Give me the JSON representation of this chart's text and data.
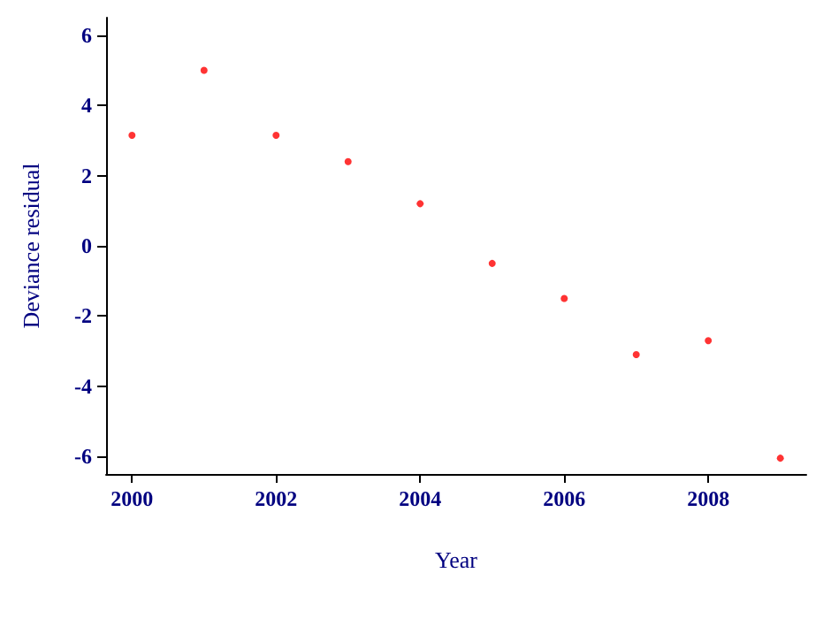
{
  "chart_data": {
    "type": "scatter",
    "xlabel": "Year",
    "ylabel": "Deviance residual",
    "x": [
      2000,
      2001,
      2002,
      2003,
      2004,
      2005,
      2006,
      2007,
      2008,
      2009
    ],
    "series": [
      {
        "color": "#ff0000",
        "values": [
          3.15,
          5.0,
          3.15,
          2.4,
          1.2,
          -0.5,
          -1.5,
          -3.1,
          -2.7,
          -6.05
        ]
      }
    ],
    "xlim": [
      1999.64,
      2009.36
    ],
    "xticks": [
      2000,
      2002,
      2004,
      2006,
      2008
    ],
    "ylim": [
      -6.5,
      6.5
    ],
    "yticks": [
      -6,
      -4,
      -2,
      0,
      2,
      4,
      6
    ],
    "marker": "circle"
  }
}
